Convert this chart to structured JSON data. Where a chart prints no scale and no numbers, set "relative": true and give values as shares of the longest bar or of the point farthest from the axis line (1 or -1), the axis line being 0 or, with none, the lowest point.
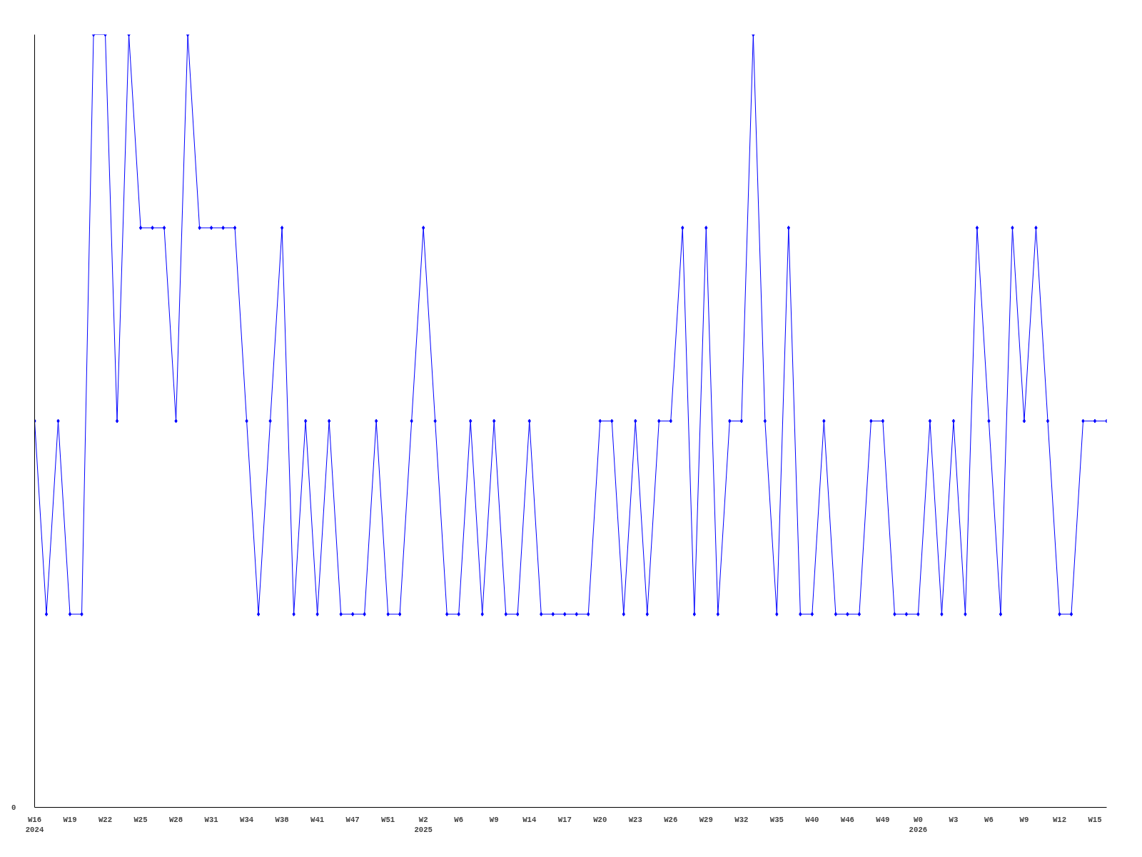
{
  "chart_data": {
    "type": "line",
    "relative": true,
    "color": "#0000ff",
    "marker": "diamond",
    "line_style": "solid",
    "grid": false,
    "annotations": [
      "0"
    ],
    "categories": [
      "W16\n2024",
      null,
      null,
      "W19",
      null,
      null,
      "W22",
      null,
      null,
      "W25",
      null,
      null,
      "W28",
      null,
      null,
      "W31",
      null,
      null,
      "W34",
      null,
      null,
      "W38",
      null,
      null,
      "W41",
      null,
      null,
      "W47",
      null,
      null,
      "W51",
      null,
      null,
      "W2\n2025",
      null,
      null,
      "W6",
      null,
      null,
      "W9",
      null,
      null,
      "W14",
      null,
      null,
      "W17",
      null,
      null,
      "W20",
      null,
      null,
      "W23",
      null,
      null,
      "W26",
      null,
      null,
      "W29",
      null,
      null,
      "W32",
      null,
      null,
      "W35",
      null,
      null,
      "W40",
      null,
      null,
      "W46",
      null,
      null,
      "W49",
      null,
      null,
      "W0\n2026",
      null,
      null,
      "W3",
      null,
      null,
      "W6",
      null,
      null,
      "W9",
      null,
      null,
      "W12",
      null,
      null,
      "W15",
      null
    ],
    "values": [
      0.5,
      0.25,
      0.5,
      0.25,
      0.25,
      1,
      1,
      0.5,
      1,
      0.75,
      0.75,
      0.75,
      0.5,
      1,
      0.75,
      0.75,
      0.75,
      0.75,
      0.5,
      0.25,
      0.5,
      0.75,
      0.25,
      0.5,
      0.25,
      0.5,
      0.25,
      0.25,
      0.25,
      0.5,
      0.25,
      0.25,
      0.5,
      0.75,
      0.5,
      0.25,
      0.25,
      0.5,
      0.25,
      0.5,
      0.25,
      0.25,
      0.5,
      0.25,
      0.25,
      0.25,
      0.25,
      0.25,
      0.5,
      0.5,
      0.25,
      0.5,
      0.25,
      0.5,
      0.5,
      0.75,
      0.25,
      0.75,
      0.25,
      0.5,
      0.5,
      1,
      0.5,
      0.25,
      0.75,
      0.25,
      0.25,
      0.5,
      0.25,
      0.25,
      0.25,
      0.5,
      0.5,
      0.25,
      0.25,
      0.25,
      0.5,
      0.25,
      0.5,
      0.25,
      0.75,
      0.5,
      0.25,
      0.75,
      0.5,
      0.75,
      0.5,
      0.25,
      0.25,
      0.5,
      0.5,
      0.5
    ]
  }
}
